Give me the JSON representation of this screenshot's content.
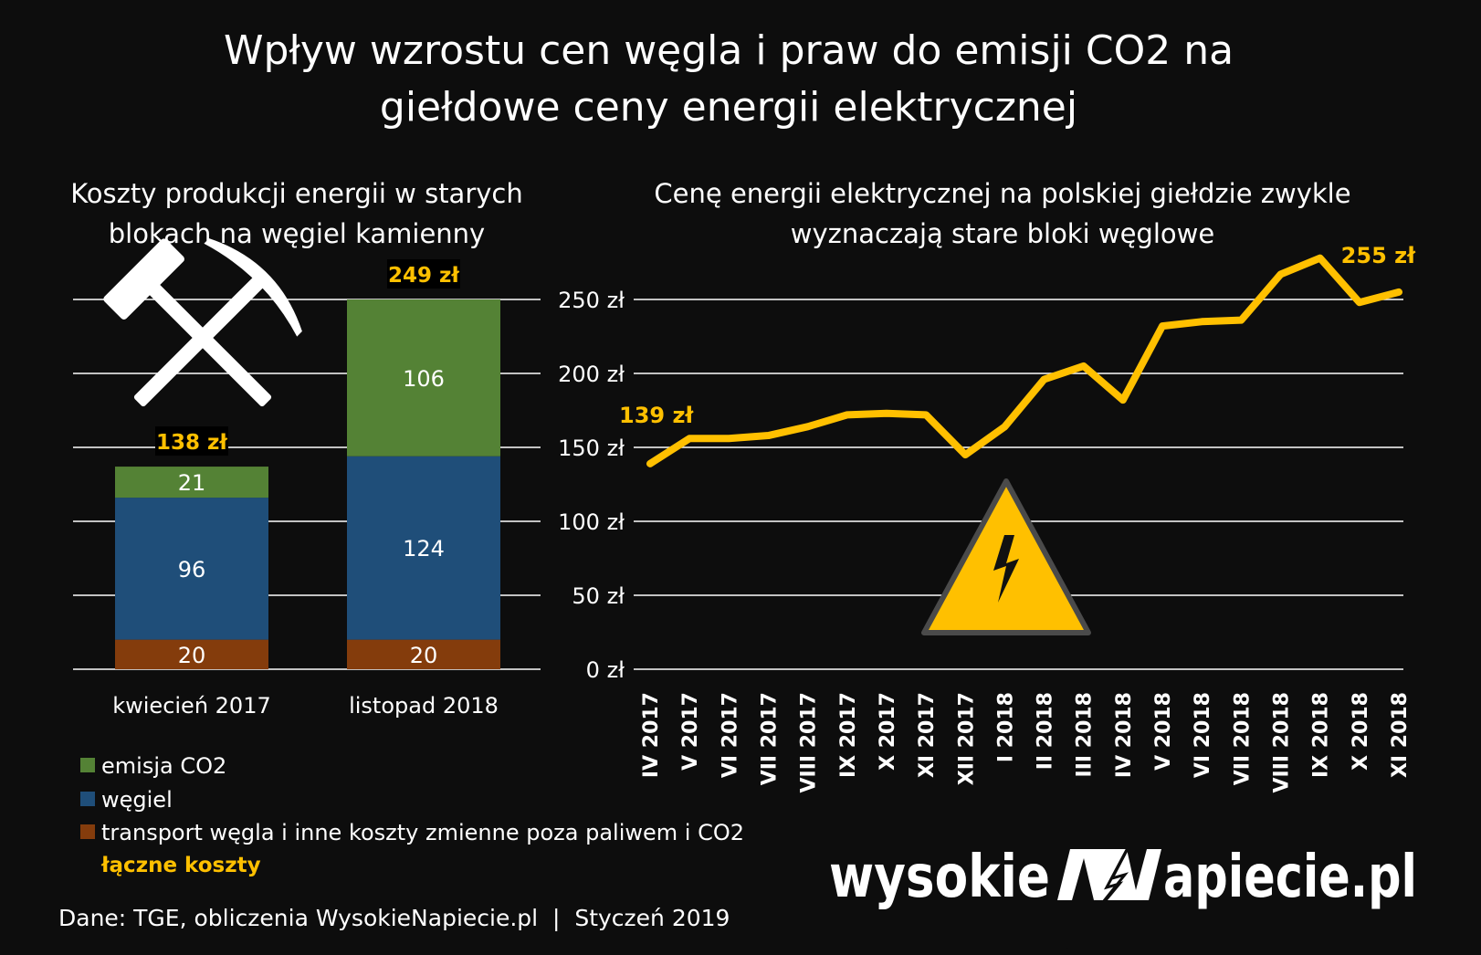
{
  "title_line1": "Wpływ wzrostu cen węgla i praw do emisji CO2 na",
  "title_line2": "giełdowe ceny energii elektrycznej",
  "source": "Dane: TGE, obliczenia WysokieNapiecie.pl  |  Styczeń 2019",
  "logo_text_left": "wysokie",
  "logo_text_right": "apiecie.pl",
  "colors": {
    "background": "#0d0d0d",
    "co2": "#548235",
    "coal": "#1f4e79",
    "transport": "#843c0c",
    "accent": "#ffc000",
    "grid": "#ffffff"
  },
  "chart_data": [
    {
      "type": "bar",
      "stacked": true,
      "title_line1": "Koszty produkcji energii w starych",
      "title_line2": "blokach na węgiel kamienny",
      "categories": [
        "kwiecień 2017",
        "listopad 2018"
      ],
      "series": [
        {
          "name": "transport węgla i inne koszty zmienne poza paliwem i CO2",
          "values": [
            20,
            20
          ],
          "color": "#843c0c"
        },
        {
          "name": "węgiel",
          "values": [
            96,
            124
          ],
          "color": "#1f4e79"
        },
        {
          "name": "emisja CO2",
          "values": [
            21,
            106
          ],
          "color": "#548235"
        }
      ],
      "totals": {
        "name": "łączne koszty",
        "labels": [
          "138 zł",
          "249 zł"
        ]
      },
      "ylim": [
        0,
        250
      ],
      "grid": true,
      "legend": [
        {
          "label": "emisja CO2",
          "color": "#548235"
        },
        {
          "label": "węgiel",
          "color": "#1f4e79"
        },
        {
          "label": "transport węgla i inne koszty zmienne poza paliwem i CO2",
          "color": "#843c0c"
        },
        {
          "label": "łączne koszty",
          "color": "#ffc000",
          "text_only": true
        }
      ],
      "legend_position": "bottom-left",
      "icon": "hammer-and-pick-icon"
    },
    {
      "type": "line",
      "title_line1": "Cenę energii elektrycznej na polskiej giełdzie zwykle",
      "title_line2": "wyznaczają stare bloki węglowe",
      "x": [
        "IV 2017",
        "V 2017",
        "VI 2017",
        "VII 2017",
        "VIII 2017",
        "IX 2017",
        "X 2017",
        "XI 2017",
        "XII 2017",
        "I 2018",
        "II 2018",
        "III 2018",
        "IV 2018",
        "V 2018",
        "VI 2018",
        "VII 2018",
        "VIII 2018",
        "IX 2018",
        "X 2018",
        "XI 2018"
      ],
      "values": [
        139,
        156,
        156,
        158,
        164,
        172,
        173,
        172,
        145,
        164,
        196,
        205,
        182,
        232,
        235,
        236,
        267,
        278,
        248,
        255
      ],
      "ylim": [
        0,
        250
      ],
      "yticks": [
        0,
        50,
        100,
        150,
        200,
        250
      ],
      "ytick_labels": [
        "0 zł",
        "50 zł",
        "100 zł",
        "150 zł",
        "200 zł",
        "250 zł"
      ],
      "first_label": "139 zł",
      "last_label": "255 zł",
      "color": "#ffc000",
      "grid": true,
      "icon": "high-voltage-warning-icon"
    }
  ]
}
